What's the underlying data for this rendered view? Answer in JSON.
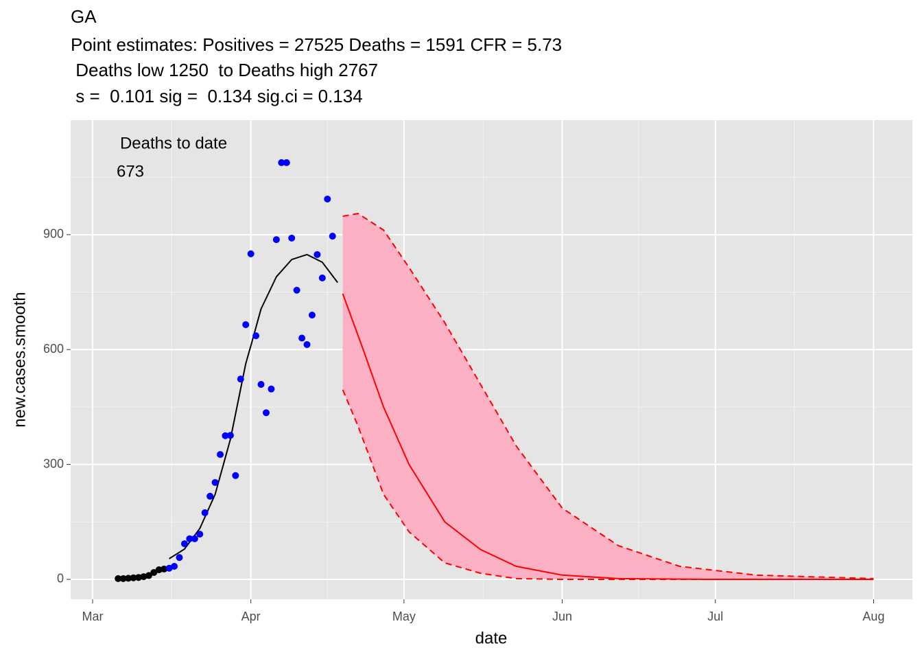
{
  "chart_data": {
    "type": "scatter",
    "title": "GA",
    "subtitle": [
      "Point estimates: Positives = 27525 Deaths = 1591 CFR = 5.73",
      " Deaths low 1250  to Deaths high 2767",
      " s =  0.101 sig =  0.134 sig.ci = 0.134"
    ],
    "annotations": [
      "Deaths to date",
      "673"
    ],
    "x_label": "date",
    "y_label": "new.cases.smooth",
    "xlim": [
      -4.3,
      160.6
    ],
    "ylim": [
      -52,
      1199
    ],
    "xticks": [
      {
        "value": 0,
        "label": "Mar"
      },
      {
        "value": 31,
        "label": "Apr"
      },
      {
        "value": 61,
        "label": "May"
      },
      {
        "value": 92,
        "label": "Jun"
      },
      {
        "value": 122,
        "label": "Jul"
      },
      {
        "value": 153,
        "label": "Aug"
      }
    ],
    "yticks": [
      0,
      300,
      600,
      900
    ],
    "grid": true,
    "series": [
      {
        "mark": "point",
        "color": "#000000",
        "x": [
          5,
          6,
          7,
          8,
          9,
          10,
          11,
          12,
          13,
          14
        ],
        "values": [
          2,
          2,
          3,
          4,
          5,
          7,
          10,
          18,
          25,
          27
        ]
      },
      {
        "mark": "point",
        "color": "#0000ff",
        "x": [
          15,
          16,
          17,
          18,
          19,
          20,
          21,
          22,
          23,
          24,
          25,
          26,
          27,
          28,
          29,
          30,
          31,
          32,
          33,
          34,
          35,
          36,
          37,
          38,
          39,
          40,
          41,
          42,
          43,
          44,
          45,
          46,
          47
        ],
        "values": [
          29,
          34,
          57,
          93,
          106,
          106,
          118,
          174,
          217,
          253,
          326,
          375,
          376,
          271,
          523,
          665,
          850,
          636,
          509,
          435,
          497,
          887,
          1088,
          1088,
          891,
          755,
          630,
          613,
          690,
          848,
          787,
          993,
          896
        ]
      },
      {
        "mark": "band",
        "color": "#ff0000",
        "fill": "#fbb1c3",
        "x": [
          49,
          52,
          57,
          62,
          69,
          76,
          83,
          92,
          103,
          115,
          130,
          153
        ],
        "low": [
          495,
          400,
          222,
          124,
          43,
          16,
          2,
          0,
          0,
          0,
          0,
          0
        ],
        "high": [
          948,
          955,
          912,
          814,
          670,
          509,
          348,
          186,
          88,
          34,
          11,
          2
        ]
      },
      {
        "mark": "line",
        "color": "#ff0000",
        "x": [
          49,
          53,
          57,
          62,
          69,
          76,
          83,
          92,
          103,
          120,
          153
        ],
        "values": [
          746,
          600,
          450,
          300,
          150,
          78,
          34,
          11,
          2,
          0,
          0
        ]
      },
      {
        "mark": "line",
        "color": "#000000",
        "x": [
          15,
          18,
          21,
          24,
          27,
          30,
          31,
          33,
          36,
          39,
          42,
          45,
          48
        ],
        "values": [
          54,
          79,
          133,
          222,
          366,
          563,
          610,
          706,
          790,
          835,
          848,
          828,
          775
        ]
      }
    ]
  }
}
